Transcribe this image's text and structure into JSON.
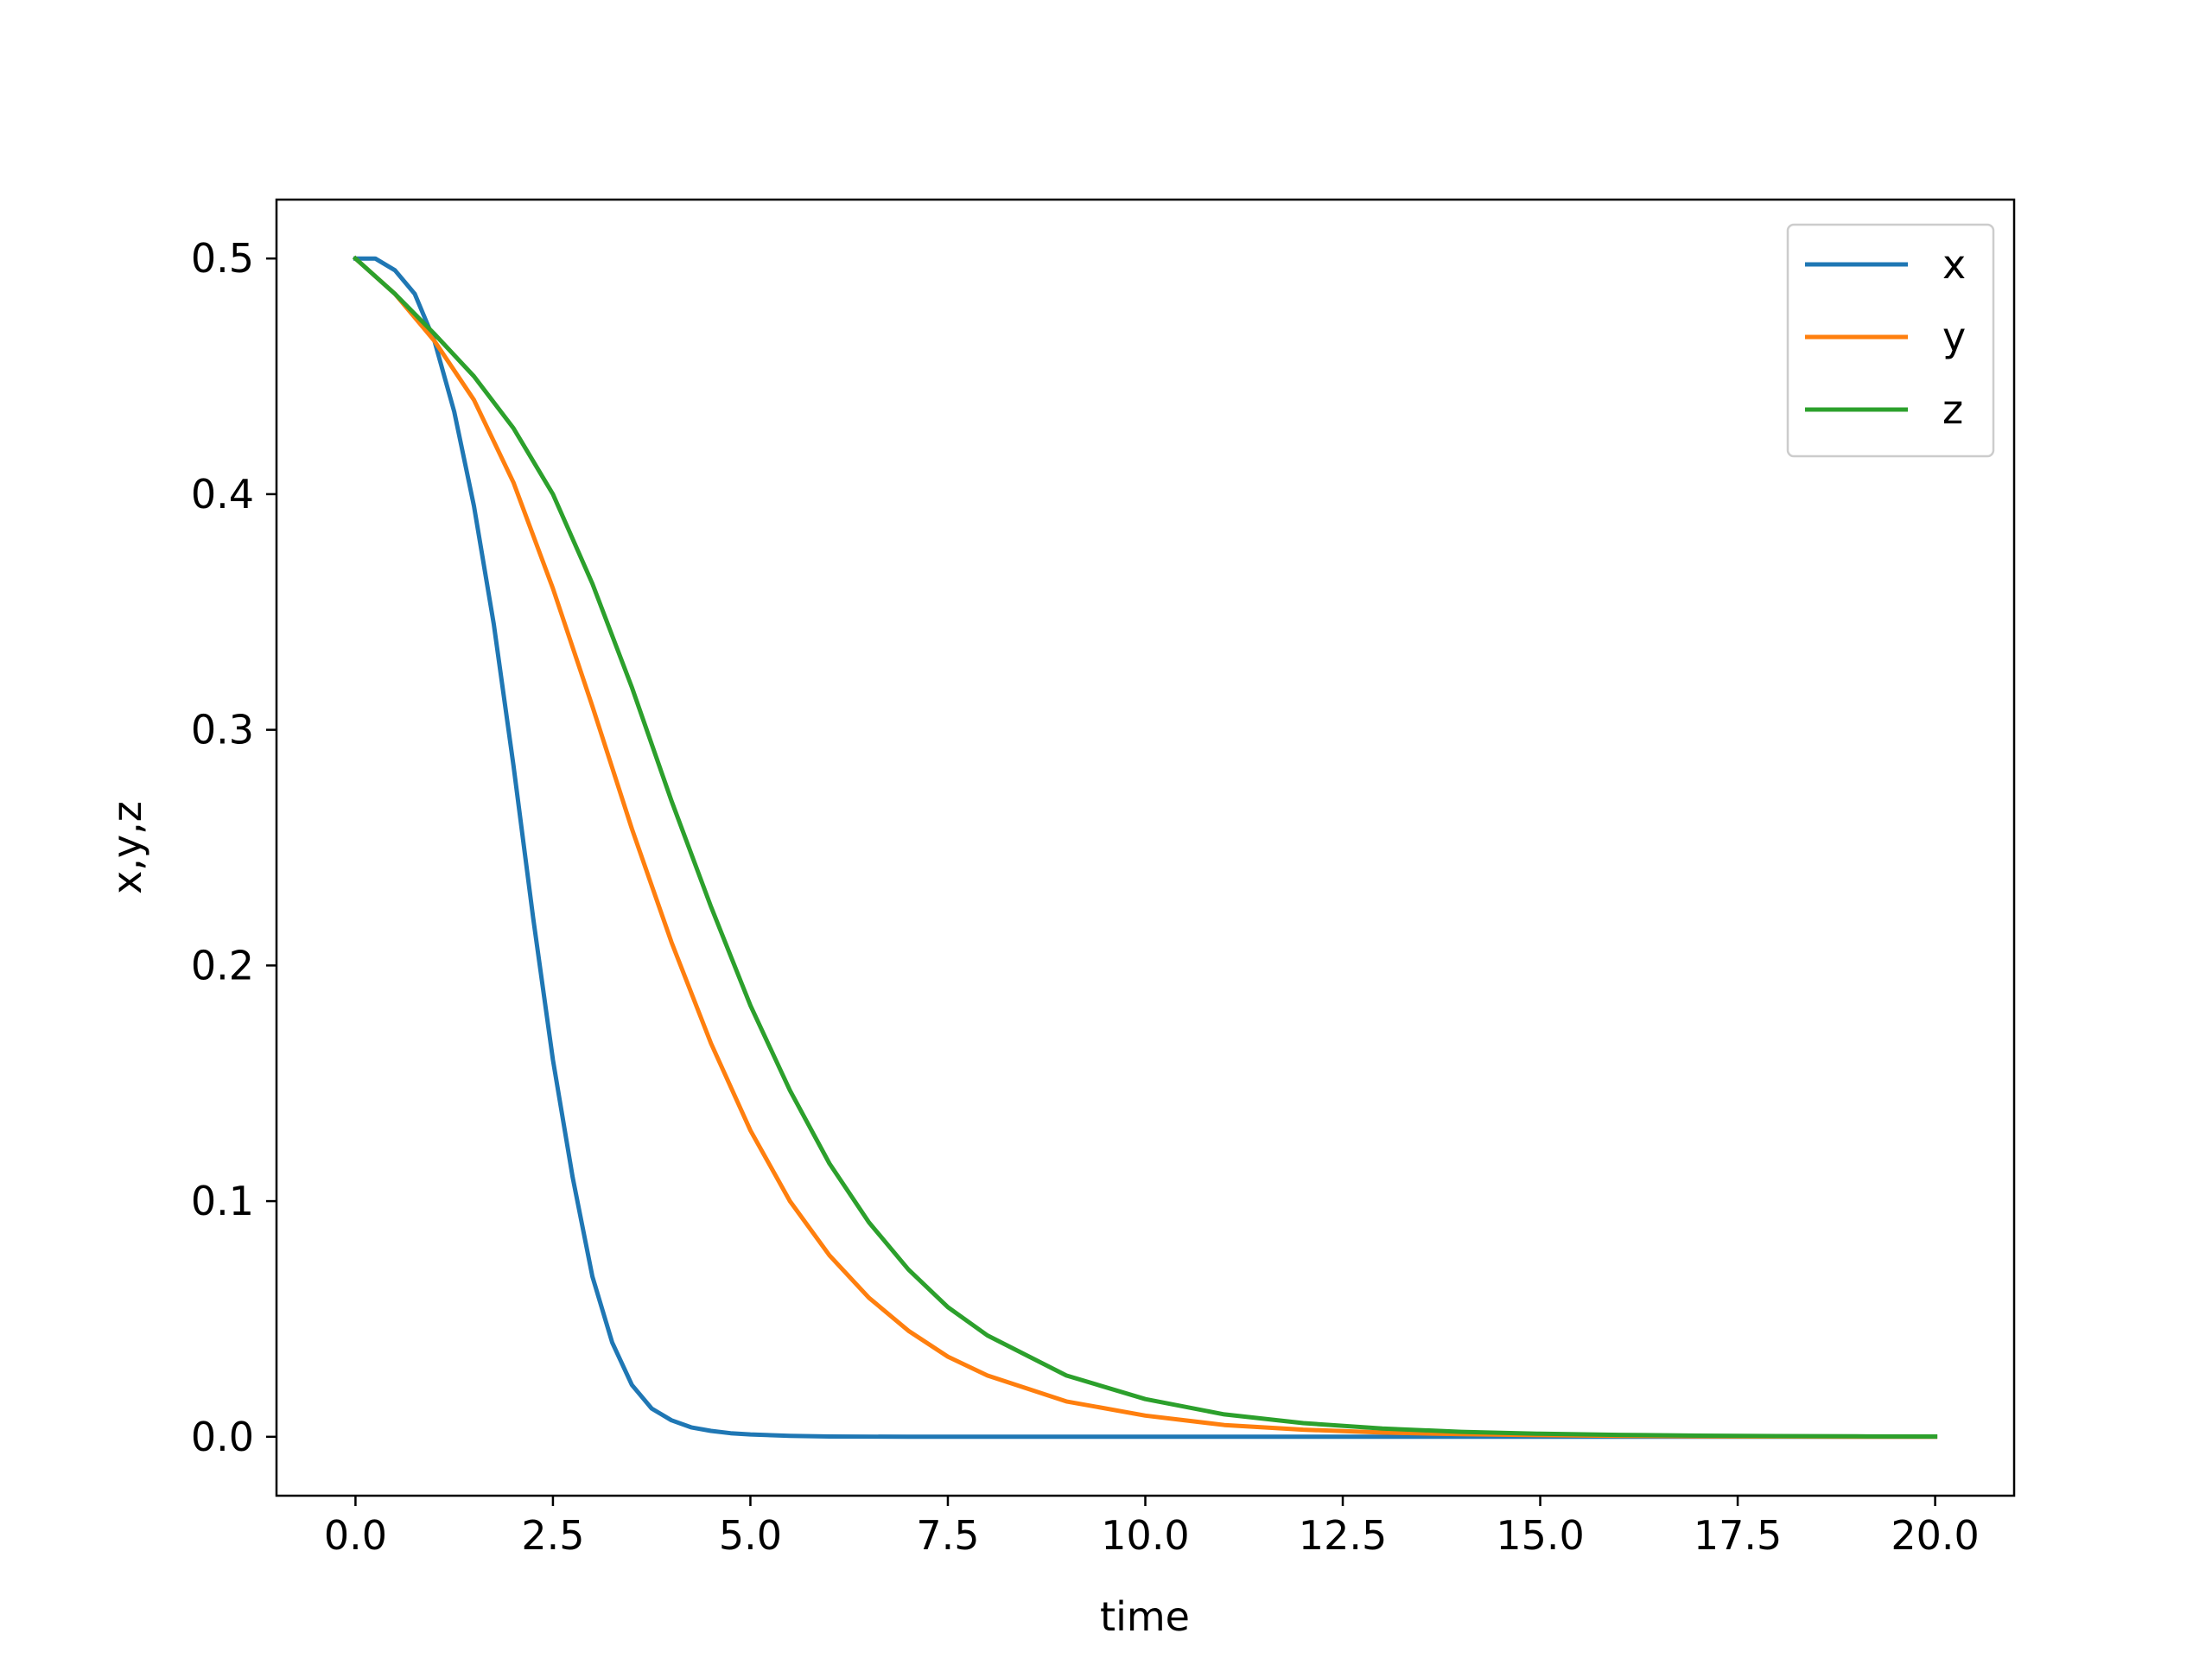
{
  "chart_data": {
    "type": "line",
    "title": "",
    "xlabel": "time",
    "ylabel": "x,y,z",
    "xlim": [
      -1.0,
      21.0
    ],
    "ylim": [
      -0.025,
      0.525
    ],
    "xticks": [
      0.0,
      2.5,
      5.0,
      7.5,
      10.0,
      12.5,
      15.0,
      17.5,
      20.0
    ],
    "xtick_labels": [
      "0.0",
      "2.5",
      "5.0",
      "7.5",
      "10.0",
      "12.5",
      "15.0",
      "17.5",
      "20.0"
    ],
    "yticks": [
      0.0,
      0.1,
      0.2,
      0.3,
      0.4,
      0.5
    ],
    "ytick_labels": [
      "0.0",
      "0.1",
      "0.2",
      "0.3",
      "0.4",
      "0.5"
    ],
    "grid": false,
    "legend_position": "top-right",
    "series": [
      {
        "name": "x",
        "color": "#1f77b4",
        "x": [
          0,
          0.25,
          0.5,
          0.75,
          1,
          1.25,
          1.5,
          1.75,
          2,
          2.25,
          2.5,
          2.75,
          3,
          3.25,
          3.5,
          3.75,
          4,
          4.25,
          4.5,
          4.75,
          5,
          5.5,
          6,
          7,
          8,
          10,
          12,
          14,
          16,
          18,
          20
        ],
        "y": [
          0.5,
          0.5,
          0.495,
          0.485,
          0.465,
          0.435,
          0.395,
          0.345,
          0.285,
          0.22,
          0.16,
          0.11,
          0.068,
          0.04,
          0.022,
          0.012,
          0.007,
          0.004,
          0.0025,
          0.0015,
          0.001,
          0.0004,
          0.0001,
          0,
          0,
          0,
          0,
          0,
          0,
          0,
          0
        ]
      },
      {
        "name": "y",
        "color": "#ff7f0e",
        "x": [
          0,
          0.5,
          1,
          1.5,
          2,
          2.5,
          3,
          3.5,
          4,
          4.5,
          5,
          5.5,
          6,
          6.5,
          7,
          7.5,
          8,
          9,
          10,
          11,
          12,
          13,
          14,
          15,
          16,
          17,
          18,
          19,
          20
        ],
        "y": [
          0.5,
          0.485,
          0.465,
          0.44,
          0.405,
          0.36,
          0.31,
          0.258,
          0.21,
          0.167,
          0.13,
          0.1,
          0.077,
          0.059,
          0.045,
          0.034,
          0.026,
          0.015,
          0.009,
          0.005,
          0.003,
          0.0018,
          0.0011,
          0.0007,
          0.0004,
          0.0002,
          0.0001,
          0,
          0
        ]
      },
      {
        "name": "z",
        "color": "#2ca02c",
        "x": [
          0,
          0.5,
          1,
          1.5,
          2,
          2.5,
          3,
          3.5,
          4,
          4.5,
          5,
          5.5,
          6,
          6.5,
          7,
          7.5,
          8,
          9,
          10,
          11,
          12,
          13,
          14,
          15,
          16,
          17,
          18,
          19,
          20
        ],
        "y": [
          0.5,
          0.485,
          0.468,
          0.45,
          0.428,
          0.4,
          0.362,
          0.318,
          0.27,
          0.225,
          0.183,
          0.147,
          0.116,
          0.091,
          0.071,
          0.055,
          0.043,
          0.026,
          0.016,
          0.0095,
          0.0058,
          0.0035,
          0.0021,
          0.0013,
          0.0008,
          0.0005,
          0.0003,
          0.0002,
          0.0001
        ]
      }
    ]
  }
}
